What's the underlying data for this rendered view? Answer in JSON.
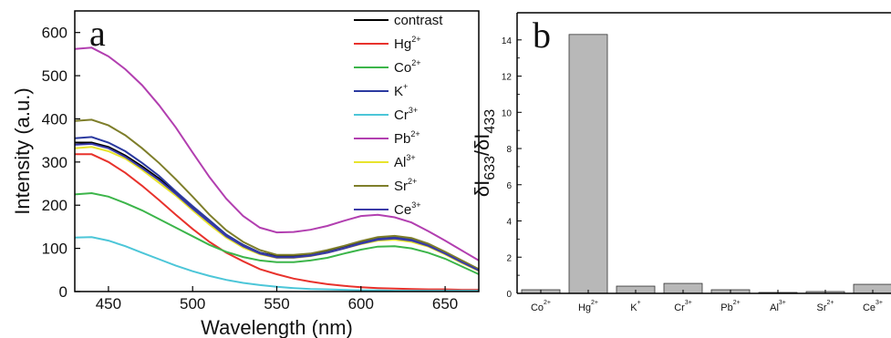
{
  "chart_data": [
    {
      "panel_label": "a",
      "type": "line",
      "xlabel": "Wavelength (nm)",
      "ylabel": "Intensity (a.u.)",
      "xlim": [
        430,
        670
      ],
      "ylim": [
        0,
        650
      ],
      "xticks": [
        450,
        500,
        550,
        600,
        650
      ],
      "yticks": [
        0,
        100,
        200,
        300,
        400,
        500,
        600
      ],
      "legend_position": "top-right",
      "series": [
        {
          "name": "contrast",
          "sup": "",
          "color": "#000000",
          "x": [
            430,
            440,
            450,
            460,
            470,
            480,
            490,
            500,
            510,
            520,
            530,
            540,
            550,
            560,
            570,
            580,
            590,
            600,
            610,
            620,
            630,
            640,
            650,
            660,
            670
          ],
          "y": [
            345,
            345,
            335,
            315,
            290,
            262,
            230,
            195,
            160,
            130,
            108,
            90,
            82,
            82,
            86,
            93,
            103,
            115,
            124,
            126,
            120,
            108,
            90,
            70,
            50
          ]
        },
        {
          "name": "Hg",
          "sup": "2+",
          "color": "#e8322c",
          "x": [
            430,
            440,
            450,
            460,
            470,
            480,
            490,
            500,
            510,
            520,
            530,
            540,
            550,
            560,
            570,
            580,
            590,
            600,
            610,
            620,
            630,
            640,
            650,
            660,
            670
          ],
          "y": [
            318,
            318,
            300,
            275,
            245,
            212,
            178,
            145,
            115,
            90,
            70,
            52,
            40,
            30,
            23,
            17,
            13,
            10,
            8,
            7,
            6,
            5,
            5,
            4,
            4
          ]
        },
        {
          "name": "Co",
          "sup": "2+",
          "color": "#3cb54a",
          "x": [
            430,
            440,
            450,
            460,
            470,
            480,
            490,
            500,
            510,
            520,
            530,
            540,
            550,
            560,
            570,
            580,
            590,
            600,
            610,
            620,
            630,
            640,
            650,
            660,
            670
          ],
          "y": [
            225,
            228,
            220,
            205,
            188,
            168,
            148,
            128,
            108,
            92,
            80,
            72,
            68,
            68,
            72,
            78,
            88,
            97,
            104,
            105,
            100,
            90,
            76,
            58,
            40
          ]
        },
        {
          "name": "K",
          "sup": "+",
          "color": "#2b3aa0",
          "x": [
            430,
            440,
            450,
            460,
            470,
            480,
            490,
            500,
            510,
            520,
            530,
            540,
            550,
            560,
            570,
            580,
            590,
            600,
            610,
            620,
            630,
            640,
            650,
            660,
            670
          ],
          "y": [
            355,
            358,
            345,
            325,
            298,
            268,
            232,
            198,
            165,
            132,
            108,
            90,
            80,
            80,
            84,
            91,
            101,
            112,
            122,
            125,
            120,
            108,
            90,
            70,
            50
          ]
        },
        {
          "name": "Cr",
          "sup": "3+",
          "color": "#4cc6d8",
          "x": [
            430,
            440,
            450,
            460,
            470,
            480,
            490,
            500,
            510,
            520,
            530,
            540,
            550,
            560,
            570,
            580,
            590,
            600,
            610,
            620,
            630,
            640,
            650,
            660,
            670
          ],
          "y": [
            125,
            126,
            118,
            105,
            90,
            75,
            60,
            47,
            36,
            27,
            20,
            15,
            11,
            8,
            6,
            5,
            4,
            3,
            3,
            2,
            2,
            2,
            2,
            2,
            2
          ]
        },
        {
          "name": "Pb",
          "sup": "2+",
          "color": "#b23fb0",
          "x": [
            430,
            440,
            450,
            460,
            470,
            480,
            490,
            500,
            510,
            520,
            530,
            540,
            550,
            560,
            570,
            580,
            590,
            600,
            610,
            620,
            630,
            640,
            650,
            660,
            670
          ],
          "y": [
            562,
            565,
            545,
            515,
            478,
            432,
            380,
            322,
            265,
            215,
            175,
            148,
            137,
            138,
            143,
            152,
            164,
            175,
            178,
            172,
            160,
            140,
            118,
            95,
            72
          ]
        },
        {
          "name": "Al",
          "sup": "3+",
          "color": "#e8e42c",
          "x": [
            430,
            440,
            450,
            460,
            470,
            480,
            490,
            500,
            510,
            520,
            530,
            540,
            550,
            560,
            570,
            580,
            590,
            600,
            610,
            620,
            630,
            640,
            650,
            660,
            670
          ],
          "y": [
            332,
            335,
            325,
            308,
            282,
            252,
            222,
            188,
            155,
            125,
            102,
            86,
            78,
            78,
            82,
            90,
            100,
            110,
            118,
            120,
            115,
            104,
            86,
            66,
            48
          ]
        },
        {
          "name": "Sr",
          "sup": "2+",
          "color": "#7e7e2a",
          "x": [
            430,
            440,
            450,
            460,
            470,
            480,
            490,
            500,
            510,
            520,
            530,
            540,
            550,
            560,
            570,
            580,
            590,
            600,
            610,
            620,
            630,
            640,
            650,
            660,
            670
          ],
          "y": [
            395,
            398,
            385,
            362,
            332,
            298,
            260,
            220,
            178,
            142,
            115,
            96,
            85,
            85,
            88,
            96,
            106,
            117,
            126,
            129,
            124,
            111,
            92,
            72,
            52
          ]
        },
        {
          "name": "Ce",
          "sup": "3+",
          "color": "#3a3aa8",
          "x": [
            430,
            440,
            450,
            460,
            470,
            480,
            490,
            500,
            510,
            520,
            530,
            540,
            550,
            560,
            570,
            580,
            590,
            600,
            610,
            620,
            630,
            640,
            650,
            660,
            670
          ],
          "y": [
            340,
            342,
            332,
            312,
            286,
            258,
            226,
            192,
            160,
            128,
            105,
            88,
            79,
            79,
            83,
            90,
            100,
            111,
            120,
            123,
            118,
            106,
            88,
            68,
            49
          ]
        }
      ]
    },
    {
      "panel_label": "b",
      "type": "bar",
      "ylabel_parts": [
        "δI",
        "633",
        "/δI",
        "433"
      ],
      "ylim": [
        0,
        15.5
      ],
      "yticks": [
        0,
        2,
        4,
        6,
        8,
        10,
        12,
        14
      ],
      "bar_color": "#b8b8b8",
      "categories": [
        {
          "name": "Co",
          "sup": "2+"
        },
        {
          "name": "Hg",
          "sup": "2+"
        },
        {
          "name": "K",
          "sup": "+"
        },
        {
          "name": "Cr",
          "sup": "3+"
        },
        {
          "name": "Pb",
          "sup": "2+"
        },
        {
          "name": "Al",
          "sup": "3+"
        },
        {
          "name": "Sr",
          "sup": "2+"
        },
        {
          "name": "Ce",
          "sup": "3+"
        }
      ],
      "values": [
        0.2,
        14.3,
        0.4,
        0.55,
        0.2,
        0.05,
        0.1,
        0.5
      ]
    }
  ]
}
